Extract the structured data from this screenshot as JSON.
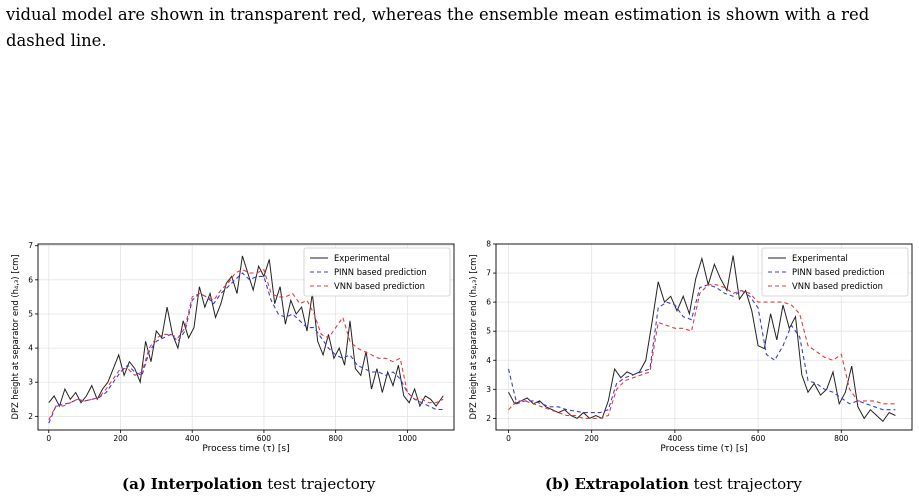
{
  "text": {
    "line1": "vidual model are shown in transparent red, whereas the ensemble mean estimation is shown with a red",
    "line2": "dashed line."
  },
  "captions": {
    "a_label": "(a)",
    "a_bold": "Interpolation",
    "a_rest": "test trajectory",
    "b_label": "(b)",
    "b_bold": "Extrapolation",
    "b_rest": "test trajectory"
  },
  "colors": {
    "experimental": "#222222",
    "pinn": "#3b3bdc",
    "vnn": "#e83a3a"
  },
  "chart_data": [
    {
      "type": "line",
      "xlabel": "Process time (τ) [s]",
      "ylabel": "DPZ height at separator end (h₄,₃) [cm]",
      "xlim": [
        -30,
        1130
      ],
      "ylim": [
        1.6,
        7.05
      ],
      "xticks": [
        0,
        200,
        400,
        600,
        800,
        1000
      ],
      "yticks": [
        2,
        3,
        4,
        5,
        6,
        7
      ],
      "grid": true,
      "legend": "top-right",
      "series": [
        {
          "name": "Experimental",
          "x": [
            0,
            15,
            30,
            45,
            60,
            75,
            90,
            105,
            120,
            135,
            150,
            165,
            180,
            195,
            210,
            225,
            240,
            255,
            270,
            285,
            300,
            315,
            330,
            345,
            360,
            375,
            390,
            405,
            420,
            435,
            450,
            465,
            480,
            495,
            510,
            525,
            540,
            555,
            570,
            585,
            600,
            615,
            630,
            645,
            660,
            675,
            690,
            705,
            720,
            735,
            750,
            765,
            780,
            795,
            810,
            825,
            840,
            855,
            870,
            885,
            900,
            915,
            930,
            945,
            960,
            975,
            990,
            1005,
            1020,
            1035,
            1050,
            1065,
            1080,
            1100
          ],
          "y": [
            2.4,
            2.6,
            2.3,
            2.8,
            2.5,
            2.7,
            2.4,
            2.6,
            2.9,
            2.5,
            2.8,
            3.0,
            3.4,
            3.8,
            3.2,
            3.6,
            3.4,
            3.0,
            4.2,
            3.6,
            4.5,
            4.3,
            5.2,
            4.4,
            4.0,
            4.8,
            4.3,
            4.6,
            5.8,
            5.2,
            5.6,
            4.9,
            5.3,
            5.9,
            6.1,
            5.6,
            6.7,
            6.2,
            5.7,
            6.4,
            6.1,
            6.6,
            5.3,
            5.8,
            4.7,
            5.4,
            5.0,
            5.2,
            4.5,
            5.6,
            4.2,
            3.8,
            4.4,
            3.7,
            4.0,
            3.5,
            4.8,
            3.4,
            3.2,
            3.9,
            2.8,
            3.4,
            2.7,
            3.3,
            2.9,
            3.5,
            2.6,
            2.4,
            2.8,
            2.3,
            2.6,
            2.5,
            2.3,
            2.6
          ]
        },
        {
          "name": "PINN based prediction",
          "x": [
            0,
            20,
            40,
            60,
            80,
            100,
            120,
            140,
            160,
            180,
            200,
            220,
            240,
            260,
            280,
            300,
            320,
            340,
            360,
            380,
            400,
            420,
            440,
            460,
            480,
            500,
            520,
            540,
            560,
            580,
            600,
            620,
            640,
            660,
            680,
            700,
            720,
            740,
            760,
            780,
            800,
            820,
            840,
            860,
            880,
            900,
            920,
            940,
            960,
            980,
            1000,
            1020,
            1040,
            1060,
            1080,
            1100
          ],
          "y": [
            1.8,
            2.3,
            2.35,
            2.4,
            2.5,
            2.45,
            2.5,
            2.55,
            2.7,
            3.0,
            3.3,
            3.5,
            3.3,
            3.2,
            3.9,
            4.2,
            4.3,
            4.4,
            4.2,
            4.5,
            5.4,
            5.6,
            5.5,
            5.3,
            5.6,
            5.8,
            6.0,
            6.2,
            6.0,
            6.1,
            6.1,
            5.4,
            5.0,
            4.9,
            5.0,
            4.8,
            4.6,
            4.6,
            4.3,
            4.0,
            3.8,
            3.7,
            3.8,
            3.5,
            3.4,
            3.3,
            3.3,
            3.2,
            3.3,
            3.1,
            2.7,
            2.5,
            2.4,
            2.3,
            2.2,
            2.2
          ]
        },
        {
          "name": "VNN based prediction",
          "x": [
            0,
            20,
            40,
            60,
            80,
            100,
            120,
            140,
            160,
            180,
            200,
            220,
            240,
            260,
            280,
            300,
            320,
            340,
            360,
            380,
            400,
            420,
            440,
            460,
            480,
            500,
            520,
            540,
            560,
            580,
            600,
            620,
            640,
            660,
            680,
            700,
            720,
            740,
            760,
            780,
            800,
            820,
            840,
            860,
            880,
            900,
            920,
            940,
            960,
            980,
            1000,
            1020,
            1040,
            1060,
            1080,
            1100
          ],
          "y": [
            1.9,
            2.3,
            2.3,
            2.4,
            2.5,
            2.45,
            2.5,
            2.55,
            2.8,
            3.1,
            3.4,
            3.4,
            3.2,
            3.3,
            4.0,
            4.3,
            4.4,
            4.4,
            4.3,
            4.6,
            5.5,
            5.6,
            5.5,
            5.4,
            5.7,
            5.9,
            6.2,
            6.3,
            6.2,
            6.2,
            6.3,
            5.6,
            5.5,
            5.5,
            5.6,
            5.3,
            5.4,
            5.0,
            4.4,
            4.3,
            4.6,
            4.9,
            4.2,
            4.0,
            3.9,
            3.8,
            3.7,
            3.7,
            3.6,
            3.7,
            2.7,
            2.5,
            2.5,
            2.4,
            2.4,
            2.5
          ]
        }
      ]
    },
    {
      "type": "line",
      "xlabel": "Process time (τ) [s]",
      "ylabel": "DPZ height at separator end (h₄,₃) [cm]",
      "xlim": [
        -30,
        970
      ],
      "ylim": [
        1.6,
        8.0
      ],
      "xticks": [
        0,
        200,
        400,
        600,
        800
      ],
      "yticks": [
        2,
        3,
        4,
        5,
        6,
        7,
        8
      ],
      "grid": true,
      "legend": "top-right",
      "series": [
        {
          "name": "Experimental",
          "x": [
            0,
            15,
            30,
            45,
            60,
            75,
            90,
            105,
            120,
            135,
            150,
            165,
            180,
            195,
            210,
            225,
            240,
            255,
            270,
            285,
            300,
            315,
            330,
            345,
            360,
            375,
            390,
            405,
            420,
            435,
            450,
            465,
            480,
            495,
            510,
            525,
            540,
            555,
            570,
            585,
            600,
            615,
            630,
            645,
            660,
            675,
            690,
            705,
            720,
            735,
            750,
            765,
            780,
            795,
            810,
            825,
            840,
            855,
            870,
            885,
            900,
            915,
            930
          ],
          "y": [
            2.9,
            2.5,
            2.6,
            2.7,
            2.5,
            2.6,
            2.4,
            2.3,
            2.2,
            2.3,
            2.1,
            2.0,
            2.2,
            2.0,
            2.1,
            2.0,
            2.6,
            3.7,
            3.4,
            3.6,
            3.5,
            3.6,
            4.0,
            5.3,
            6.7,
            6.0,
            6.2,
            5.7,
            6.2,
            5.6,
            6.8,
            7.5,
            6.6,
            7.3,
            6.8,
            6.4,
            7.6,
            6.1,
            6.4,
            5.7,
            4.5,
            4.4,
            5.6,
            4.7,
            5.9,
            5.1,
            5.5,
            3.5,
            2.9,
            3.2,
            2.8,
            3.0,
            3.6,
            2.5,
            2.9,
            3.8,
            2.4,
            2.0,
            2.3,
            2.1,
            1.9,
            2.2,
            2.1
          ]
        },
        {
          "name": "PINN based prediction",
          "x": [
            0,
            20,
            40,
            60,
            80,
            100,
            120,
            140,
            160,
            180,
            200,
            220,
            240,
            260,
            280,
            300,
            320,
            340,
            360,
            380,
            400,
            420,
            440,
            460,
            480,
            500,
            520,
            540,
            560,
            580,
            600,
            620,
            640,
            660,
            680,
            700,
            720,
            740,
            760,
            780,
            800,
            820,
            840,
            860,
            880,
            900,
            920,
            930
          ],
          "y": [
            3.7,
            2.5,
            2.6,
            2.6,
            2.5,
            2.4,
            2.4,
            2.3,
            2.25,
            2.2,
            2.2,
            2.2,
            2.3,
            3.2,
            3.4,
            3.5,
            3.6,
            3.7,
            5.8,
            6.0,
            5.9,
            5.5,
            5.4,
            6.5,
            6.6,
            6.5,
            6.3,
            6.2,
            6.4,
            6.2,
            5.8,
            4.2,
            4.0,
            4.5,
            5.2,
            4.8,
            3.3,
            3.2,
            3.0,
            2.9,
            2.7,
            2.5,
            2.6,
            2.5,
            2.4,
            2.3,
            2.3,
            2.3
          ]
        },
        {
          "name": "VNN based prediction",
          "x": [
            0,
            20,
            40,
            60,
            80,
            100,
            120,
            140,
            160,
            180,
            200,
            220,
            240,
            260,
            280,
            300,
            320,
            340,
            360,
            380,
            400,
            420,
            440,
            460,
            480,
            500,
            520,
            540,
            560,
            580,
            600,
            620,
            640,
            660,
            680,
            700,
            720,
            740,
            760,
            780,
            800,
            820,
            840,
            860,
            880,
            900,
            920,
            930
          ],
          "y": [
            2.3,
            2.6,
            2.6,
            2.5,
            2.4,
            2.3,
            2.2,
            2.1,
            2.1,
            2.0,
            2.0,
            2.0,
            2.1,
            3.0,
            3.3,
            3.4,
            3.5,
            3.6,
            5.3,
            5.2,
            5.1,
            5.1,
            5.0,
            6.3,
            6.6,
            6.6,
            6.5,
            6.3,
            6.4,
            6.3,
            6.0,
            6.0,
            6.0,
            6.0,
            5.9,
            5.6,
            4.5,
            4.3,
            4.1,
            4.0,
            4.2,
            3.0,
            2.6,
            2.6,
            2.6,
            2.5,
            2.5,
            2.5
          ]
        }
      ]
    }
  ]
}
